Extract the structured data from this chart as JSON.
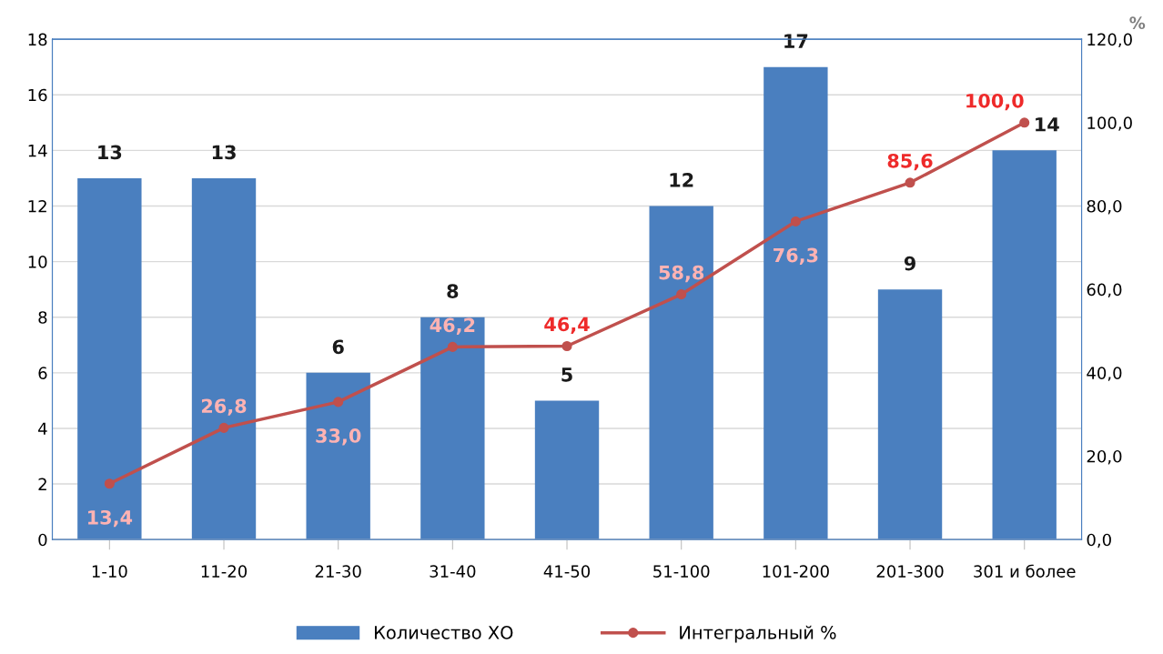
{
  "chart_data": {
    "type": "bar",
    "categories": [
      "1-10",
      "11-20",
      "21-30",
      "31-40",
      "41-50",
      "51-100",
      "101-200",
      "201-300",
      "301 и более"
    ],
    "series": [
      {
        "name": "Количество ХО",
        "color": "#4a7fbf",
        "values": [
          13,
          13,
          6,
          8,
          5,
          12,
          17,
          9,
          14
        ],
        "data_labels": true
      },
      {
        "name": "Интегральный %",
        "type": "line",
        "axis": "y2",
        "color": "#c0504d",
        "marker": "circle",
        "values": [
          13.4,
          26.8,
          33.0,
          46.2,
          46.4,
          58.8,
          76.3,
          85.6,
          100.0
        ],
        "value_labels": [
          "13,4",
          "26,8",
          "33,0",
          "46,2",
          "46,4",
          "58,8",
          "76,3",
          "85,6",
          "100,0"
        ]
      }
    ],
    "y2label": "%",
    "ylim": [
      0,
      18
    ],
    "yticks": [
      0,
      2,
      4,
      6,
      8,
      10,
      12,
      14,
      16,
      18
    ],
    "y2lim": [
      0,
      120
    ],
    "y2ticks": [
      {
        "value": 0,
        "label": "0,0"
      },
      {
        "value": 20,
        "label": "20,0"
      },
      {
        "value": 40,
        "label": "40,0"
      },
      {
        "value": 60,
        "label": "60,0"
      },
      {
        "value": 80,
        "label": "80,0"
      },
      {
        "value": 100,
        "label": "100,0"
      },
      {
        "value": 120,
        "label": "120,0"
      }
    ],
    "grid": "y",
    "legend": "bottom"
  }
}
